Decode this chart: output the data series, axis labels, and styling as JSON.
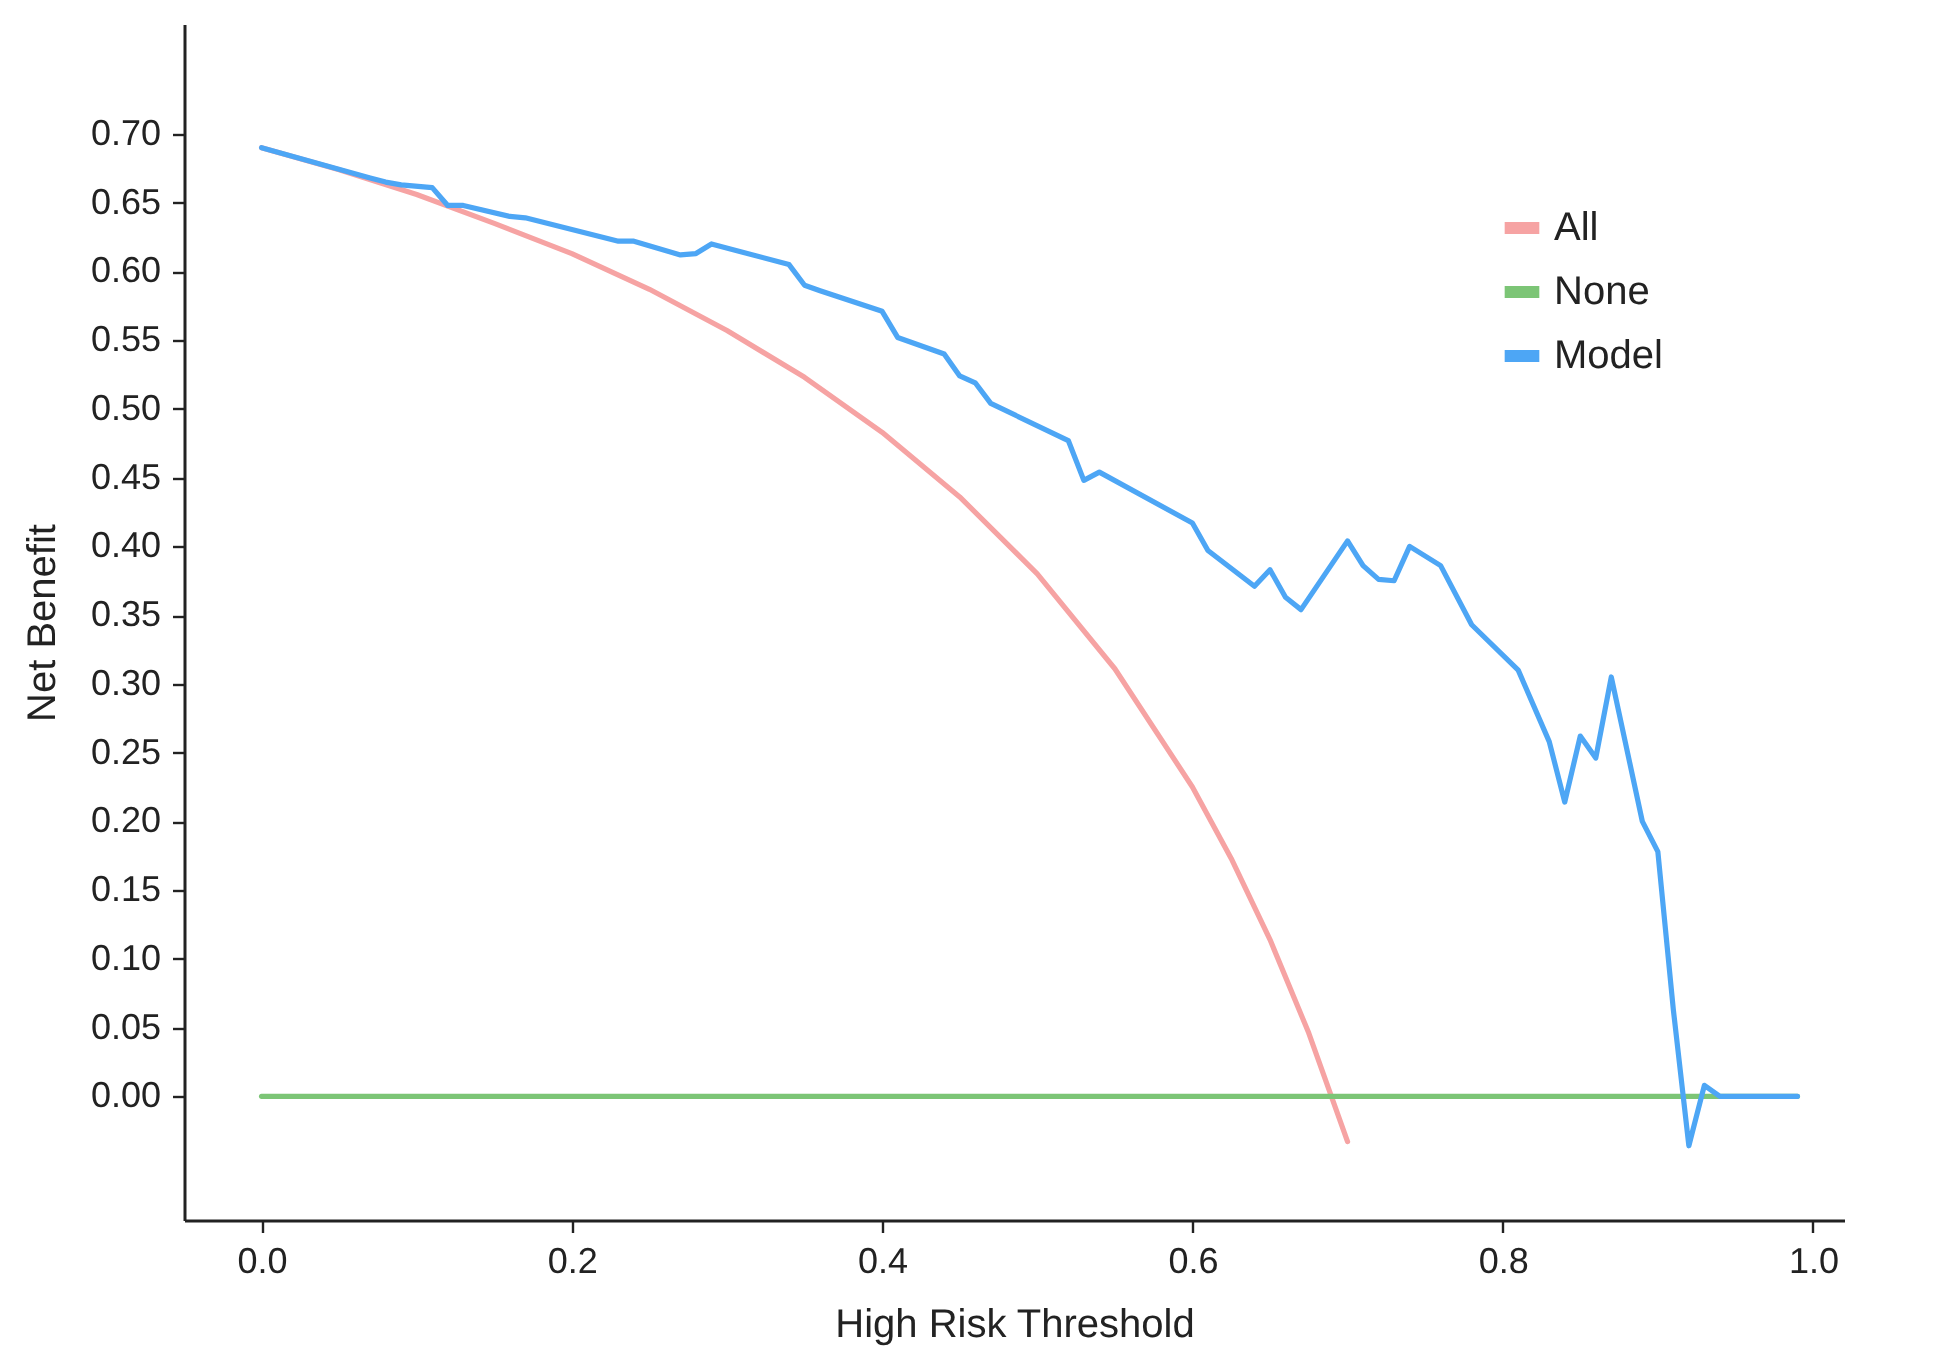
{
  "chart_data": {
    "type": "line",
    "xlabel": "High Risk Threshold",
    "ylabel": "Net Benefit",
    "xlim": [
      -0.05,
      1.02
    ],
    "ylim": [
      -0.09,
      0.78
    ],
    "xticks": [
      {
        "value": 0,
        "label": "0.0"
      },
      0.2,
      0.4,
      0.6,
      0.8,
      {
        "value": 1,
        "label": "1.0"
      }
    ],
    "yticks": [
      {
        "value": 0,
        "label": "0.00"
      },
      0.05,
      {
        "value": 0.1,
        "label": "0.10"
      },
      0.15,
      {
        "value": 0.2,
        "label": "0.20"
      },
      0.25,
      {
        "value": 0.3,
        "label": "0.30"
      },
      0.35,
      {
        "value": 0.4,
        "label": "0.40"
      },
      0.45,
      {
        "value": 0.5,
        "label": "0.50"
      },
      0.55,
      {
        "value": 0.6,
        "label": "0.60"
      },
      0.65,
      {
        "value": 0.7,
        "label": "0.70"
      }
    ],
    "grid": false,
    "legend": "top right",
    "line_style": "solid",
    "series": [
      {
        "name": "All",
        "color": "#f6a3a3",
        "x": [
          0,
          0.05,
          0.1,
          0.15,
          0.2,
          0.25,
          0.3,
          0.35,
          0.4,
          0.45,
          0.5,
          0.55,
          0.6,
          0.625,
          0.65,
          0.675,
          0.7
        ],
        "values": [
          0.69,
          0.674,
          0.656,
          0.635,
          0.613,
          0.587,
          0.557,
          0.523,
          0.483,
          0.436,
          0.38,
          0.311,
          0.225,
          0.173,
          0.114,
          0.046,
          -0.033
        ]
      },
      {
        "name": "None",
        "color": "#7cc576",
        "x": [
          0,
          0.99
        ],
        "values": [
          0,
          0
        ]
      },
      {
        "name": "Model",
        "color": "#4da6f5",
        "x": [
          0,
          0.07,
          0.08,
          0.09,
          0.11,
          0.12,
          0.13,
          0.16,
          0.17,
          0.23,
          0.24,
          0.27,
          0.28,
          0.29,
          0.34,
          0.35,
          0.36,
          0.4,
          0.41,
          0.44,
          0.45,
          0.46,
          0.47,
          0.52,
          0.53,
          0.54,
          0.6,
          0.61,
          0.64,
          0.65,
          0.66,
          0.67,
          0.7,
          0.71,
          0.72,
          0.73,
          0.74,
          0.76,
          0.78,
          0.81,
          0.83,
          0.84,
          0.85,
          0.86,
          0.87,
          0.89,
          0.9,
          0.91,
          0.92,
          0.93,
          0.94,
          0.99
        ],
        "values": [
          0.69,
          0.668,
          0.665,
          0.663,
          0.661,
          0.648,
          0.648,
          0.64,
          0.639,
          0.622,
          0.622,
          0.612,
          0.613,
          0.62,
          0.605,
          0.59,
          0.586,
          0.571,
          0.552,
          0.54,
          0.524,
          0.519,
          0.504,
          0.477,
          0.448,
          0.454,
          0.417,
          0.397,
          0.371,
          0.383,
          0.363,
          0.354,
          0.404,
          0.386,
          0.376,
          0.375,
          0.4,
          0.386,
          0.343,
          0.31,
          0.258,
          0.214,
          0.262,
          0.246,
          0.305,
          0.2,
          0.178,
          0.063,
          -0.036,
          0.008,
          0,
          0
        ]
      }
    ]
  }
}
